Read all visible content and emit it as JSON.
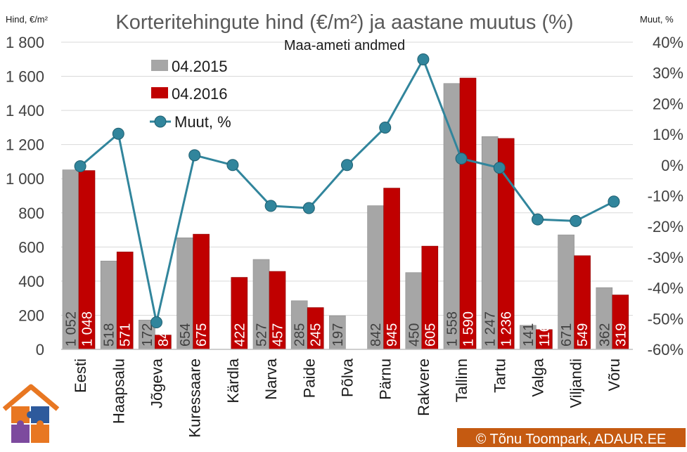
{
  "chart_data": {
    "type": "bar+line",
    "title": "Korteritehingute hind (€/m²) ja aastane muutus (%)",
    "subtitle": "Maa-ameti andmed",
    "ylabel": "Hind, €/m²",
    "y2label": "Muut, %",
    "ylim": [
      0,
      1800
    ],
    "y2lim": [
      -60,
      40
    ],
    "yticks": [
      "0",
      "200",
      "400",
      "600",
      "800",
      "1 000",
      "1 200",
      "1 400",
      "1 600",
      "1 800"
    ],
    "y2ticks": [
      "-60%",
      "-50%",
      "-40%",
      "-30%",
      "-20%",
      "-10%",
      "0%",
      "10%",
      "20%",
      "30%",
      "40%"
    ],
    "categories": [
      "Eesti",
      "Haapsalu",
      "Jõgeva",
      "Kuressaare",
      "Kärdla",
      "Narva",
      "Paide",
      "Põlva",
      "Pärnu",
      "Rakvere",
      "Tallinn",
      "Tartu",
      "Valga",
      "Viljandi",
      "Võru"
    ],
    "series": [
      {
        "name": "04.2015",
        "kind": "bar",
        "color": "#a6a6a6",
        "values": [
          1052,
          518,
          172,
          654,
          null,
          527,
          285,
          197,
          842,
          450,
          1558,
          1247,
          141,
          671,
          362
        ],
        "labels": [
          "1 052",
          "518",
          "172",
          "654",
          "",
          "527",
          "285",
          "197",
          "842",
          "450",
          "1 558",
          "1 247",
          "141",
          "671",
          "362"
        ]
      },
      {
        "name": "04.2016",
        "kind": "bar",
        "color": "#c00000",
        "values": [
          1048,
          571,
          84,
          675,
          422,
          457,
          245,
          null,
          945,
          605,
          1590,
          1236,
          116,
          549,
          319
        ],
        "labels": [
          "1 048",
          "571",
          "84",
          "675",
          "422",
          "457",
          "245",
          "",
          "945",
          "605",
          "1 590",
          "1 236",
          "116",
          "549",
          "319"
        ]
      },
      {
        "name": "Muut, %",
        "kind": "line",
        "axis": "right",
        "color": "#31859c",
        "values": [
          -0.4,
          10.2,
          -51.2,
          3.2,
          0,
          -13.3,
          -14.0,
          0,
          12.2,
          34.4,
          2.1,
          -0.9,
          -17.7,
          -18.2,
          -11.9
        ]
      }
    ],
    "legend_position": "top-left",
    "grid": true
  },
  "credit": {
    "text": "© Tõnu Toompark, ADAUR.EE"
  },
  "logo": {
    "name": "house-puzzle-logo",
    "colors": [
      "#e87722",
      "#2e5a9c",
      "#7d4a9e"
    ]
  }
}
